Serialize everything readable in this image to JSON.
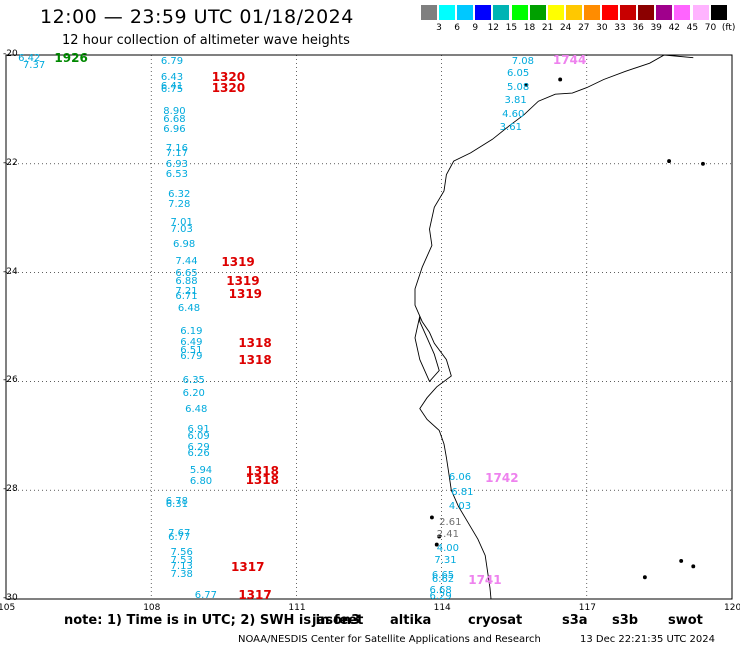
{
  "header": {
    "title": "12:00 — 23:59 UTC 01/18/2024",
    "subtitle": "12 hour collection of altimeter wave heights"
  },
  "scale": {
    "colors": [
      "#7f7f7f",
      "#00ffff",
      "#00c8ff",
      "#0000ff",
      "#00b4b4",
      "#00ff00",
      "#00a000",
      "#ffff00",
      "#ffc800",
      "#ff8c00",
      "#ff0000",
      "#c80000",
      "#8b0000",
      "#a0008c",
      "#ff64ff",
      "#ffb4ff",
      "#000000"
    ],
    "ticks": [
      "3",
      "6",
      "9",
      "12",
      "15",
      "18",
      "21",
      "24",
      "27",
      "30",
      "33",
      "36",
      "39",
      "42",
      "45",
      "70",
      "(ft)"
    ]
  },
  "axes": {
    "lat_labels": [
      "-20",
      "-22",
      "-24",
      "-26",
      "-28",
      "-30"
    ],
    "lon_labels": [
      "105",
      "108",
      "111",
      "114",
      "117",
      "120"
    ]
  },
  "map_data": {
    "wave_labels": [
      {
        "t": "6.42",
        "c": "#00aadd",
        "lat": -20.07,
        "lon": 105.25
      },
      {
        "t": "7.37",
        "c": "#00aadd",
        "lat": -20.2,
        "lon": 105.35
      },
      {
        "t": "1926",
        "c": "#008800",
        "lat": -20.05,
        "lon": 106.0,
        "pass": true
      },
      {
        "t": "6.79",
        "c": "#00aadd",
        "lat": -20.12,
        "lon": 108.2
      },
      {
        "t": "6.43",
        "c": "#00aadd",
        "lat": -20.43,
        "lon": 108.2
      },
      {
        "t": "6.41",
        "c": "#00aadd",
        "lat": -20.58,
        "lon": 108.2
      },
      {
        "t": "6.75",
        "c": "#00aadd",
        "lat": -20.65,
        "lon": 108.2
      },
      {
        "t": "1320",
        "c": "#dd0000",
        "lat": -20.41,
        "lon": 109.25,
        "pass": true
      },
      {
        "t": "1320",
        "c": "#dd0000",
        "lat": -20.6,
        "lon": 109.25,
        "pass": true
      },
      {
        "t": "8.90",
        "c": "#00aadd",
        "lat": -21.05,
        "lon": 108.25
      },
      {
        "t": "6.68",
        "c": "#00aadd",
        "lat": -21.2,
        "lon": 108.25
      },
      {
        "t": "6.96",
        "c": "#00aadd",
        "lat": -21.37,
        "lon": 108.25
      },
      {
        "t": "7.16",
        "c": "#00aadd",
        "lat": -21.73,
        "lon": 108.3
      },
      {
        "t": "7.17",
        "c": "#00aadd",
        "lat": -21.82,
        "lon": 108.3
      },
      {
        "t": "6.93",
        "c": "#00aadd",
        "lat": -22.03,
        "lon": 108.3
      },
      {
        "t": "6.53",
        "c": "#00aadd",
        "lat": -22.2,
        "lon": 108.3
      },
      {
        "t": "6.32",
        "c": "#00aadd",
        "lat": -22.58,
        "lon": 108.35
      },
      {
        "t": "7.28",
        "c": "#00aadd",
        "lat": -22.75,
        "lon": 108.35
      },
      {
        "t": "7.01",
        "c": "#00aadd",
        "lat": -23.08,
        "lon": 108.4
      },
      {
        "t": "7.03",
        "c": "#00aadd",
        "lat": -23.22,
        "lon": 108.4
      },
      {
        "t": "6.98",
        "c": "#00aadd",
        "lat": -23.5,
        "lon": 108.45
      },
      {
        "t": "7.44",
        "c": "#00aadd",
        "lat": -23.8,
        "lon": 108.5
      },
      {
        "t": "1319",
        "c": "#dd0000",
        "lat": -23.8,
        "lon": 109.45,
        "pass": true
      },
      {
        "t": "6.65",
        "c": "#00aadd",
        "lat": -24.03,
        "lon": 108.5
      },
      {
        "t": "6.88",
        "c": "#00aadd",
        "lat": -24.17,
        "lon": 108.5
      },
      {
        "t": "1319",
        "c": "#dd0000",
        "lat": -24.15,
        "lon": 109.55,
        "pass": true
      },
      {
        "t": "7.21",
        "c": "#00aadd",
        "lat": -24.36,
        "lon": 108.5
      },
      {
        "t": "6.71",
        "c": "#00aadd",
        "lat": -24.44,
        "lon": 108.5
      },
      {
        "t": "1319",
        "c": "#dd0000",
        "lat": -24.4,
        "lon": 109.6,
        "pass": true
      },
      {
        "t": "6.48",
        "c": "#00aadd",
        "lat": -24.67,
        "lon": 108.55
      },
      {
        "t": "6.19",
        "c": "#00aadd",
        "lat": -25.1,
        "lon": 108.6
      },
      {
        "t": "6.49",
        "c": "#00aadd",
        "lat": -25.3,
        "lon": 108.6
      },
      {
        "t": "1318",
        "c": "#dd0000",
        "lat": -25.3,
        "lon": 109.8,
        "pass": true
      },
      {
        "t": "6.51",
        "c": "#00aadd",
        "lat": -25.45,
        "lon": 108.6
      },
      {
        "t": "6.79",
        "c": "#00aadd",
        "lat": -25.55,
        "lon": 108.6
      },
      {
        "t": "1318",
        "c": "#dd0000",
        "lat": -25.6,
        "lon": 109.8,
        "pass": true
      },
      {
        "t": "6.35",
        "c": "#00aadd",
        "lat": -26.0,
        "lon": 108.65
      },
      {
        "t": "6.20",
        "c": "#00aadd",
        "lat": -26.23,
        "lon": 108.65
      },
      {
        "t": "6.48",
        "c": "#00aadd",
        "lat": -26.53,
        "lon": 108.7
      },
      {
        "t": "6.91",
        "c": "#00aadd",
        "lat": -26.9,
        "lon": 108.75
      },
      {
        "t": "6.09",
        "c": "#00aadd",
        "lat": -27.03,
        "lon": 108.75
      },
      {
        "t": "6.29",
        "c": "#00aadd",
        "lat": -27.23,
        "lon": 108.75
      },
      {
        "t": "6.26",
        "c": "#00aadd",
        "lat": -27.33,
        "lon": 108.75
      },
      {
        "t": "5.94",
        "c": "#00aadd",
        "lat": -27.65,
        "lon": 108.8
      },
      {
        "t": "1318",
        "c": "#dd0000",
        "lat": -27.65,
        "lon": 109.95,
        "pass": true
      },
      {
        "t": "6.80",
        "c": "#00aadd",
        "lat": -27.85,
        "lon": 108.8
      },
      {
        "t": "1318",
        "c": "#dd0000",
        "lat": -27.82,
        "lon": 109.95,
        "pass": true
      },
      {
        "t": "6.78",
        "c": "#00aadd",
        "lat": -28.22,
        "lon": 108.3
      },
      {
        "t": "6.31",
        "c": "#00aadd",
        "lat": -28.28,
        "lon": 108.3
      },
      {
        "t": "7.67",
        "c": "#00aadd",
        "lat": -28.8,
        "lon": 108.35
      },
      {
        "t": "6.77",
        "c": "#00aadd",
        "lat": -28.88,
        "lon": 108.35
      },
      {
        "t": "7.56",
        "c": "#00aadd",
        "lat": -29.15,
        "lon": 108.4
      },
      {
        "t": "7.53",
        "c": "#00aadd",
        "lat": -29.31,
        "lon": 108.4
      },
      {
        "t": "7.13",
        "c": "#00aadd",
        "lat": -29.42,
        "lon": 108.4
      },
      {
        "t": "1317",
        "c": "#dd0000",
        "lat": -29.42,
        "lon": 109.65,
        "pass": true
      },
      {
        "t": "7.38",
        "c": "#00aadd",
        "lat": -29.55,
        "lon": 108.4
      },
      {
        "t": "6.77",
        "c": "#00aadd",
        "lat": -29.95,
        "lon": 108.9
      },
      {
        "t": "1317",
        "c": "#dd0000",
        "lat": -29.92,
        "lon": 109.8,
        "pass": true
      },
      {
        "t": "7.08",
        "c": "#00aadd",
        "lat": -20.13,
        "lon": 115.45
      },
      {
        "t": "1744",
        "c": "#ee82ee",
        "lat": -20.1,
        "lon": 116.3,
        "pass": true
      },
      {
        "t": "6.05",
        "c": "#00aadd",
        "lat": -20.35,
        "lon": 115.35
      },
      {
        "t": "5.08",
        "c": "#00aadd",
        "lat": -20.6,
        "lon": 115.35
      },
      {
        "t": "3.81",
        "c": "#00aadd",
        "lat": -20.85,
        "lon": 115.3
      },
      {
        "t": "4.60",
        "c": "#00aadd",
        "lat": -21.1,
        "lon": 115.25
      },
      {
        "t": "3.61",
        "c": "#00aadd",
        "lat": -21.35,
        "lon": 115.2
      },
      {
        "t": "6.06",
        "c": "#00aadd",
        "lat": -27.78,
        "lon": 114.15
      },
      {
        "t": "1742",
        "c": "#ee82ee",
        "lat": -27.78,
        "lon": 114.9,
        "pass": true
      },
      {
        "t": "6.81",
        "c": "#00aadd",
        "lat": -28.05,
        "lon": 114.2
      },
      {
        "t": "4.03",
        "c": "#00aadd",
        "lat": -28.3,
        "lon": 114.15
      },
      {
        "t": "2.61",
        "c": "#707070",
        "lat": -28.6,
        "lon": 113.95
      },
      {
        "t": "2.41",
        "c": "#707070",
        "lat": -28.83,
        "lon": 113.9
      },
      {
        "t": "4.00",
        "c": "#00aadd",
        "lat": -29.08,
        "lon": 113.9
      },
      {
        "t": "7.31",
        "c": "#00aadd",
        "lat": -29.3,
        "lon": 113.85
      },
      {
        "t": "6.65",
        "c": "#00aadd",
        "lat": -29.58,
        "lon": 113.8
      },
      {
        "t": "6.62",
        "c": "#00aadd",
        "lat": -29.65,
        "lon": 113.8
      },
      {
        "t": "1741",
        "c": "#ee82ee",
        "lat": -29.65,
        "lon": 114.55,
        "pass": true
      },
      {
        "t": "6.68",
        "c": "#00aadd",
        "lat": -29.85,
        "lon": 113.75
      },
      {
        "t": "6.29",
        "c": "#00aadd",
        "lat": -29.97,
        "lon": 113.75
      }
    ]
  },
  "footer": {
    "note": "note:  1) Time is in UTC;  2) SWH is in feet",
    "satellites": [
      {
        "name": "jason3",
        "color": "#008800"
      },
      {
        "name": "altika",
        "color": "#ff9900"
      },
      {
        "name": "cryosat",
        "color": "#dd0000"
      },
      {
        "name": "s3a",
        "color": "#aa1111"
      },
      {
        "name": "s3b",
        "color": "#aabbee"
      },
      {
        "name": "swot",
        "color": "#ee99dd"
      }
    ],
    "credit": "NOAA/NESDIS Center for Satellite Applications and Research",
    "generated": "13 Dec 22:21:35 UTC 2024"
  }
}
